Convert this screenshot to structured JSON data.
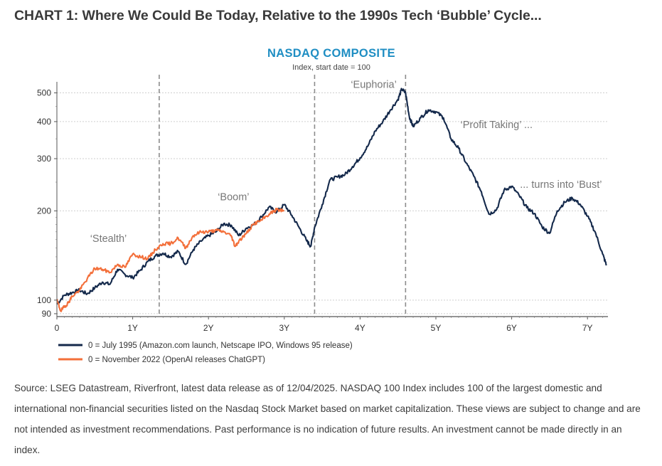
{
  "page": {
    "title": "CHART 1: Where We Could Be Today, Relative to the 1990s Tech ‘Bubble’ Cycle...",
    "footnote": "Source: LSEG Datastream, Riverfront, latest data release as of 12/04/2025. NASDAQ 100 Index includes 100 of the largest domestic and international non-financial securities listed on the Nasdaq Stock Market based on market capitalization. These views are subject to change and are not intended as investment recommendations. Past performance is no indication of future results. An investment cannot be made directly in an index."
  },
  "colors": {
    "title_blue": "#1f8ec3",
    "series_1990s": "#14294b",
    "series_2022": "#f36f3a",
    "gridline": "#cfcfcf",
    "phase_line": "#8c8c8c",
    "annotation": "#777777"
  },
  "chart_data": {
    "type": "line",
    "title": "NASDAQ COMPOSITE",
    "subtitle": "Index, start date = 100",
    "xlabel": "",
    "ylabel": "",
    "y_scale": "log",
    "xlim": [
      0,
      7.3
    ],
    "ylim": [
      88,
      530
    ],
    "x_ticks": [
      {
        "value": 0,
        "label": "0"
      },
      {
        "value": 1,
        "label": "1Y"
      },
      {
        "value": 2,
        "label": "2Y"
      },
      {
        "value": 3,
        "label": "3Y"
      },
      {
        "value": 4,
        "label": "4Y"
      },
      {
        "value": 5,
        "label": "5Y"
      },
      {
        "value": 6,
        "label": "6Y"
      },
      {
        "value": 7,
        "label": "7Y"
      }
    ],
    "y_ticks": [
      {
        "value": 90,
        "label": "90"
      },
      {
        "value": 100,
        "label": "100"
      },
      {
        "value": 200,
        "label": "200"
      },
      {
        "value": 300,
        "label": "300"
      },
      {
        "value": 400,
        "label": "400"
      },
      {
        "value": 500,
        "label": "500"
      }
    ],
    "grid": "horizontal dotted",
    "legend_position": "bottom-left",
    "phase_dividers": [
      1.35,
      3.4,
      4.6
    ],
    "annotations": [
      {
        "text": "‘Stealth’",
        "x": 0.68,
        "y": 157
      },
      {
        "text": "‘Boom’",
        "x": 2.33,
        "y": 217
      },
      {
        "text": "‘Euphoria’",
        "x": 4.18,
        "y": 520
      },
      {
        "text": "‘Profit Taking’ ...",
        "x": 5.8,
        "y": 380
      },
      {
        "text": "... turns into ‘Bust’",
        "x": 6.65,
        "y": 239
      }
    ],
    "series": [
      {
        "name": "0 = July 1995 (Amazon.com launch, Netscape IPO, Windows 95 release)",
        "color_key": "series_1990s",
        "x": [
          0,
          0.1,
          0.2,
          0.3,
          0.4,
          0.5,
          0.6,
          0.7,
          0.8,
          0.9,
          1.0,
          1.1,
          1.2,
          1.3,
          1.4,
          1.5,
          1.6,
          1.7,
          1.8,
          1.9,
          2.0,
          2.1,
          2.2,
          2.3,
          2.4,
          2.5,
          2.6,
          2.7,
          2.8,
          2.9,
          3.0,
          3.1,
          3.2,
          3.3,
          3.35,
          3.4,
          3.5,
          3.6,
          3.7,
          3.8,
          3.9,
          4.0,
          4.1,
          4.2,
          4.3,
          4.4,
          4.5,
          4.55,
          4.6,
          4.65,
          4.7,
          4.8,
          4.9,
          5.0,
          5.1,
          5.2,
          5.3,
          5.4,
          5.5,
          5.6,
          5.7,
          5.8,
          5.9,
          6.0,
          6.1,
          6.2,
          6.3,
          6.4,
          6.5,
          6.6,
          6.7,
          6.8,
          6.9,
          7.0,
          7.1,
          7.2,
          7.25
        ],
        "values": [
          97,
          104,
          106,
          108,
          105,
          110,
          115,
          113,
          127,
          122,
          119,
          126,
          135,
          141,
          144,
          140,
          146,
          132,
          148,
          158,
          165,
          170,
          181,
          179,
          165,
          175,
          180,
          191,
          206,
          198,
          210,
          193,
          175,
          158,
          152,
          176,
          210,
          254,
          260,
          265,
          282,
          302,
          330,
          372,
          400,
          438,
          475,
          515,
          500,
          415,
          385,
          412,
          438,
          432,
          412,
          350,
          325,
          290,
          262,
          232,
          195,
          202,
          235,
          242,
          225,
          205,
          196,
          177,
          168,
          200,
          214,
          221,
          211,
          192,
          170,
          143,
          131
        ],
        "noise_seed": 7,
        "noise_amp": 0.014
      },
      {
        "name": "0 = November 2022 (OpenAI releases ChatGPT)",
        "color_key": "series_2022",
        "x": [
          0,
          0.05,
          0.1,
          0.15,
          0.2,
          0.3,
          0.4,
          0.5,
          0.6,
          0.7,
          0.8,
          0.9,
          1.0,
          1.1,
          1.2,
          1.3,
          1.4,
          1.5,
          1.6,
          1.7,
          1.8,
          1.9,
          2.0,
          2.1,
          2.2,
          2.3,
          2.35,
          2.4,
          2.5,
          2.6,
          2.7,
          2.8,
          2.9,
          3.0
        ],
        "values": [
          100,
          92,
          95,
          98,
          103,
          108,
          118,
          128,
          127,
          124,
          132,
          129,
          143,
          140,
          138,
          148,
          155,
          155,
          162,
          150,
          165,
          170,
          170,
          172,
          170,
          165,
          152,
          158,
          168,
          181,
          186,
          195,
          202,
          200
        ],
        "noise_seed": 19,
        "noise_amp": 0.013
      }
    ]
  }
}
